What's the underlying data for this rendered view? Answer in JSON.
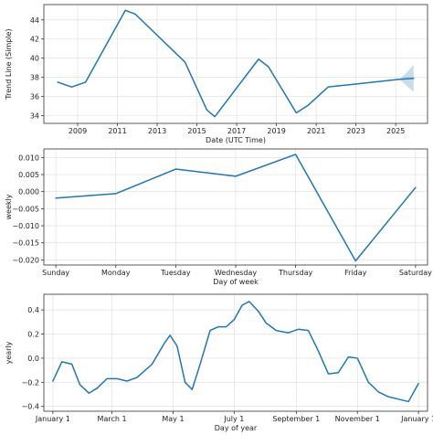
{
  "chart_data": [
    {
      "type": "line",
      "xlabel": "Date (UTC Time)",
      "ylabel": "Trend Line (Simple)",
      "xlim": [
        2007.3,
        2026.6
      ],
      "ylim": [
        33.2,
        45.6
      ],
      "grid": true,
      "x_ticks": [
        2009,
        2011,
        2013,
        2015,
        2017,
        2019,
        2021,
        2023,
        2025
      ],
      "x_tick_labels": [
        "2009",
        "2011",
        "2013",
        "2015",
        "2017",
        "2019",
        "2021",
        "2023",
        "2025"
      ],
      "y_ticks": [
        34,
        36,
        38,
        40,
        42,
        44
      ],
      "y_tick_labels": [
        "34",
        "36",
        "38",
        "40",
        "42",
        "44"
      ],
      "color": "#1f77b4",
      "series": [
        {
          "x": [
            2008.0,
            2008.7,
            2009.4,
            2011.4,
            2011.9,
            2014.4,
            2015.5,
            2015.9,
            2018.1,
            2018.6,
            2020.0,
            2020.6,
            2021.6,
            2025.2,
            2025.9
          ],
          "values": [
            37.5,
            37.0,
            37.5,
            45.0,
            44.6,
            39.6,
            34.6,
            33.9,
            39.9,
            39.1,
            34.3,
            35.1,
            37.0,
            37.8,
            37.9
          ]
        }
      ],
      "uncertainty_band": {
        "x": [
          2025.2,
          2025.5,
          2025.9
        ],
        "upper": [
          37.8,
          38.4,
          39.3
        ],
        "lower": [
          37.8,
          37.2,
          36.5
        ]
      }
    },
    {
      "type": "line",
      "xlabel": "Day of week",
      "ylabel": "weekly",
      "categories": [
        "Sunday",
        "Monday",
        "Tuesday",
        "Wednesday",
        "Thursday",
        "Friday",
        "Saturday"
      ],
      "xlim": [
        -0.2,
        6.2
      ],
      "ylim": [
        -0.0215,
        0.0125
      ],
      "grid": true,
      "y_ticks": [
        -0.02,
        -0.015,
        -0.01,
        -0.005,
        0.0,
        0.005,
        0.01
      ],
      "y_tick_labels": [
        "−0.020",
        "−0.015",
        "−0.010",
        "−0.005",
        "0.000",
        "0.005",
        "0.010"
      ],
      "color": "#1f77b4",
      "series": [
        {
          "values": [
            -0.0019,
            -0.0006,
            0.0066,
            0.0045,
            0.0109,
            -0.0203,
            0.0012
          ]
        }
      ]
    },
    {
      "type": "line",
      "xlabel": "Day of year",
      "ylabel": "yearly",
      "xlim": [
        -8,
        375
      ],
      "ylim": [
        -0.44,
        0.53
      ],
      "grid": true,
      "x_ticks": [
        1,
        60,
        121,
        182,
        244,
        305,
        366
      ],
      "x_tick_labels": [
        "January 1",
        "March 1",
        "May 1",
        "July 1",
        "September 1",
        "November 1",
        "January 1"
      ],
      "y_ticks": [
        -0.4,
        -0.2,
        0.0,
        0.2,
        0.4
      ],
      "y_tick_labels": [
        "−0.4",
        "−0.2",
        "0.0",
        "0.2",
        "0.4"
      ],
      "color": "#1f77b4",
      "series": [
        {
          "x": [
            1,
            10,
            20,
            28,
            37,
            45,
            55,
            65,
            75,
            85,
            100,
            112,
            118,
            125,
            133,
            140,
            148,
            158,
            166,
            174,
            182,
            190,
            197,
            206,
            214,
            224,
            236,
            246,
            256,
            266,
            276,
            286,
            296,
            305,
            316,
            326,
            336,
            346,
            356,
            366
          ],
          "values": [
            -0.19,
            -0.03,
            -0.05,
            -0.22,
            -0.29,
            -0.25,
            -0.17,
            -0.17,
            -0.19,
            -0.16,
            -0.05,
            0.12,
            0.19,
            0.1,
            -0.2,
            -0.26,
            -0.05,
            0.23,
            0.26,
            0.26,
            0.32,
            0.44,
            0.47,
            0.39,
            0.29,
            0.23,
            0.21,
            0.24,
            0.23,
            0.06,
            -0.13,
            -0.12,
            0.01,
            0.0,
            -0.2,
            -0.28,
            -0.32,
            -0.34,
            -0.36,
            -0.21
          ]
        }
      ]
    }
  ]
}
